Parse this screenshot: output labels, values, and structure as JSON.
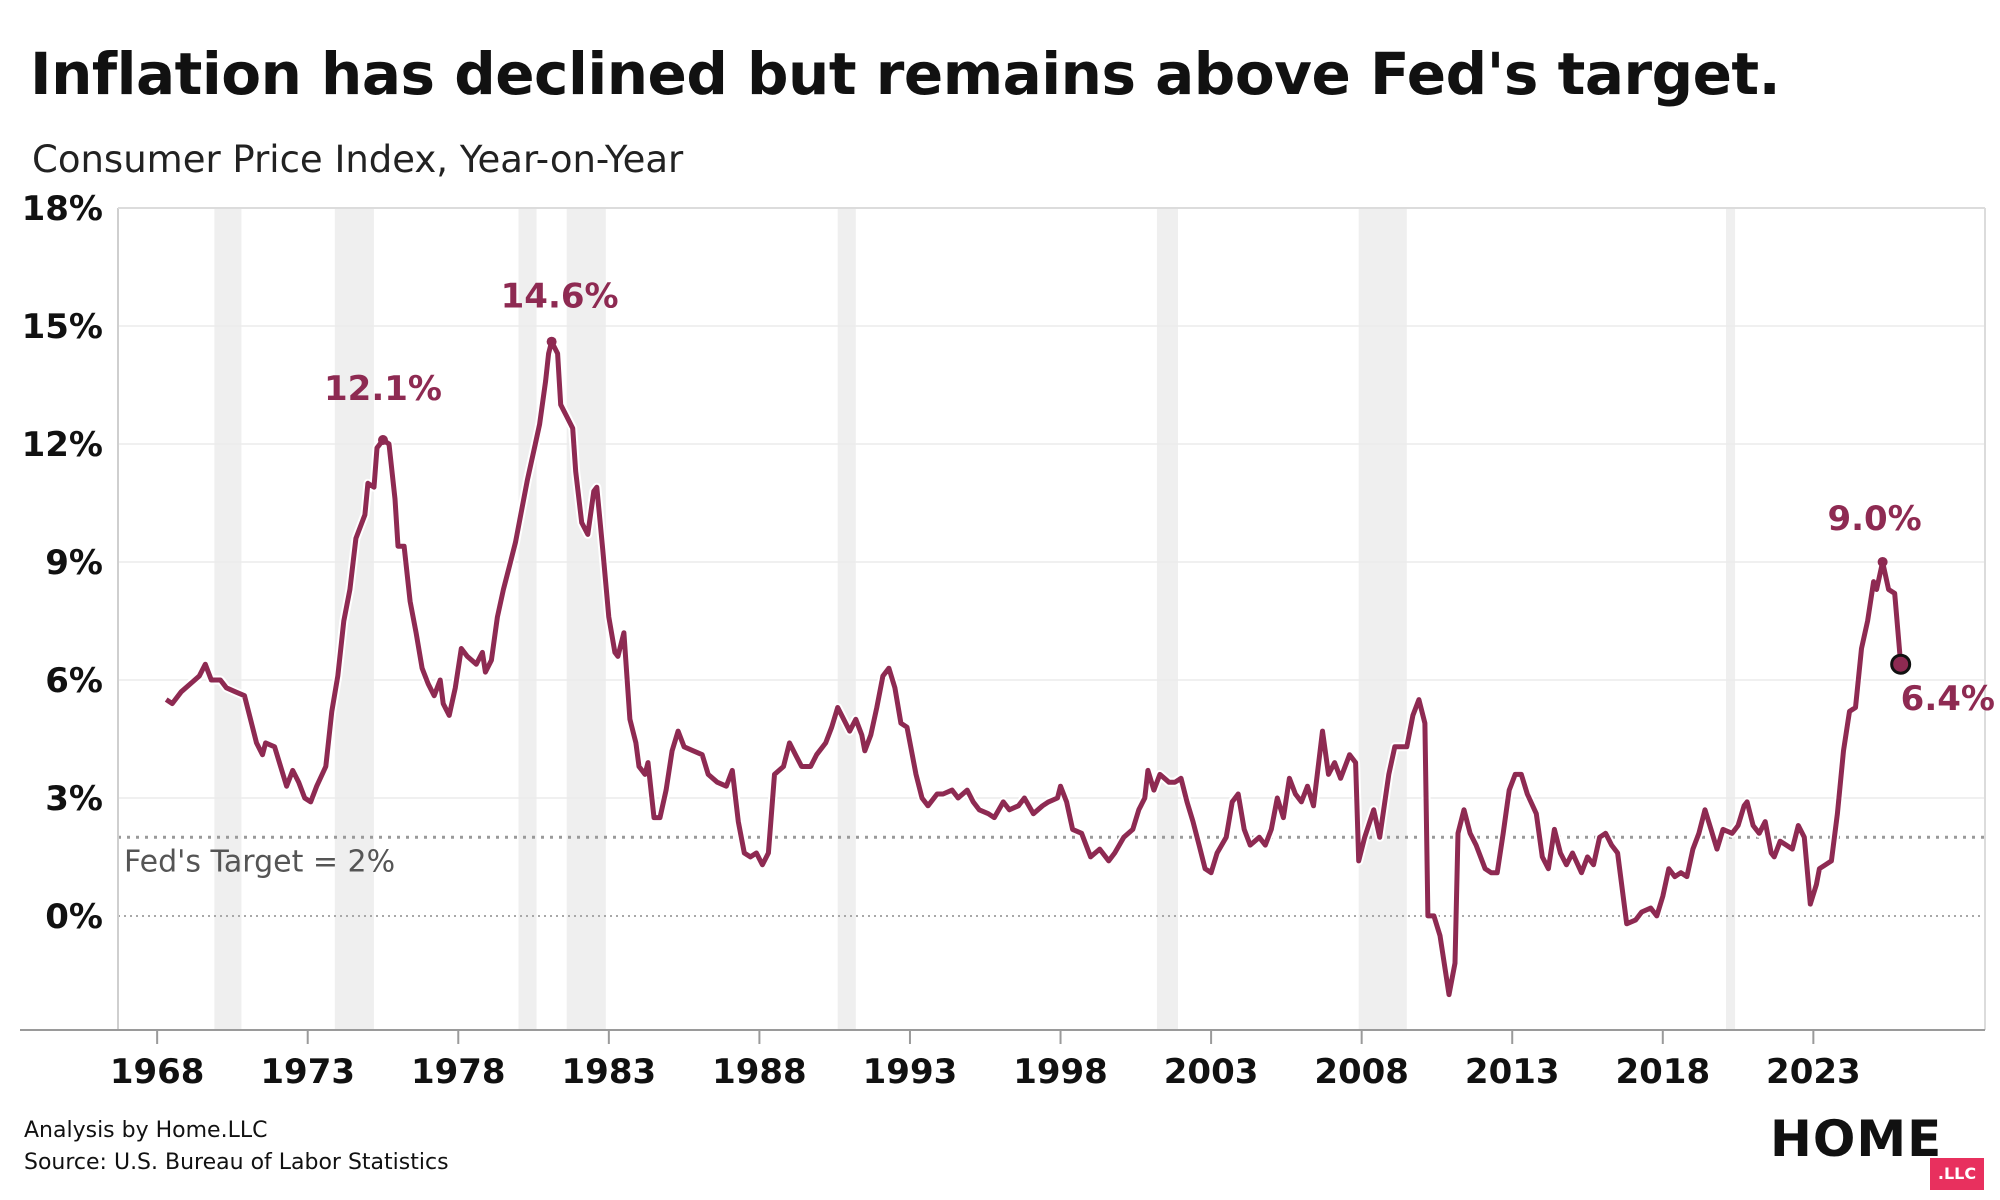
{
  "header": {
    "title": "Inflation has declined but remains above Fed's target.",
    "subtitle": "Consumer Price Index, Year-on-Year"
  },
  "footer": {
    "analysis": "Analysis by Home.LLC",
    "source": "Source: U.S. Bureau of Labor Statistics"
  },
  "logo": {
    "text": "HOME",
    "badge": ".LLC",
    "badge_color": "#e8305e"
  },
  "chart_data": {
    "type": "line",
    "title": "Inflation has declined but remains above Fed's target.",
    "subtitle": "Consumer Price Index, Year-on-Year",
    "xlabel": "",
    "ylabel": "",
    "xlim": [
      1966.7,
      2028.7
    ],
    "ylim": [
      -2.9,
      18
    ],
    "x_ticks": [
      1968,
      1973,
      1978,
      1983,
      1988,
      1993,
      1998,
      2003,
      2008,
      2013,
      2018,
      2023
    ],
    "x_tick_labels": [
      "1968",
      "1973",
      "1978",
      "1983",
      "1988",
      "1993",
      "1998",
      "2003",
      "2008",
      "2013",
      "2018",
      "2023"
    ],
    "y_ticks": [
      0,
      3,
      6,
      9,
      12,
      15,
      18
    ],
    "y_tick_labels": [
      "0%",
      "3%",
      "6%",
      "9%",
      "12%",
      "15%",
      "18%"
    ],
    "grid": "horizontal",
    "line_color": "#8e2a52",
    "recession_color": "#efefef",
    "recessions": [
      [
        1969.9,
        1970.8
      ],
      [
        1973.9,
        1975.2
      ],
      [
        1980.0,
        1980.6
      ],
      [
        1981.6,
        1982.9
      ],
      [
        1990.6,
        1991.2
      ],
      [
        2001.2,
        2001.9
      ],
      [
        2007.9,
        2009.5
      ],
      [
        2020.1,
        2020.4
      ]
    ],
    "reference_line": {
      "value": 2,
      "label": "Fed's Target = 2%"
    },
    "series": [
      {
        "name": "",
        "points": [
          [
            1968.3,
            5.5
          ],
          [
            1968.5,
            5.4
          ],
          [
            1968.8,
            5.7
          ],
          [
            1969.1,
            5.9
          ],
          [
            1969.4,
            6.1
          ],
          [
            1969.6,
            6.4
          ],
          [
            1969.8,
            6.0
          ],
          [
            1970.1,
            6.0
          ],
          [
            1970.3,
            5.8
          ],
          [
            1970.6,
            5.7
          ],
          [
            1970.9,
            5.6
          ],
          [
            1971.1,
            5.0
          ],
          [
            1971.3,
            4.4
          ],
          [
            1971.5,
            4.1
          ],
          [
            1971.6,
            4.4
          ],
          [
            1971.9,
            4.3
          ],
          [
            1972.1,
            3.8
          ],
          [
            1972.3,
            3.3
          ],
          [
            1972.5,
            3.7
          ],
          [
            1972.7,
            3.4
          ],
          [
            1972.9,
            3.0
          ],
          [
            1973.1,
            2.9
          ],
          [
            1973.3,
            3.3
          ],
          [
            1973.6,
            3.8
          ],
          [
            1973.8,
            5.2
          ],
          [
            1974.0,
            6.1
          ],
          [
            1974.2,
            7.5
          ],
          [
            1974.4,
            8.3
          ],
          [
            1974.6,
            9.6
          ],
          [
            1974.9,
            10.2
          ],
          [
            1975.0,
            11.0
          ],
          [
            1975.2,
            10.9
          ],
          [
            1975.3,
            11.9
          ],
          [
            1975.5,
            12.1
          ],
          [
            1975.7,
            12.0
          ],
          [
            1975.9,
            10.6
          ],
          [
            1976.0,
            9.4
          ],
          [
            1976.2,
            9.4
          ],
          [
            1976.4,
            8.0
          ],
          [
            1976.6,
            7.2
          ],
          [
            1976.8,
            6.3
          ],
          [
            1977.0,
            5.9
          ],
          [
            1977.2,
            5.6
          ],
          [
            1977.4,
            6.0
          ],
          [
            1977.5,
            5.4
          ],
          [
            1977.7,
            5.1
          ],
          [
            1977.9,
            5.8
          ],
          [
            1978.1,
            6.8
          ],
          [
            1978.3,
            6.6
          ],
          [
            1978.6,
            6.4
          ],
          [
            1978.8,
            6.7
          ],
          [
            1978.9,
            6.2
          ],
          [
            1979.1,
            6.5
          ],
          [
            1979.3,
            7.6
          ],
          [
            1979.5,
            8.3
          ],
          [
            1979.7,
            8.9
          ],
          [
            1979.9,
            9.5
          ],
          [
            1980.1,
            10.3
          ],
          [
            1980.3,
            11.1
          ],
          [
            1980.5,
            11.8
          ],
          [
            1980.7,
            12.5
          ],
          [
            1980.9,
            13.6
          ],
          [
            1981.0,
            14.3
          ],
          [
            1981.1,
            14.6
          ],
          [
            1981.3,
            14.3
          ],
          [
            1981.4,
            13.0
          ],
          [
            1981.6,
            12.7
          ],
          [
            1981.8,
            12.4
          ],
          [
            1981.9,
            11.3
          ],
          [
            1982.1,
            10.0
          ],
          [
            1982.3,
            9.7
          ],
          [
            1982.5,
            10.8
          ],
          [
            1982.6,
            10.9
          ],
          [
            1982.8,
            9.3
          ],
          [
            1983.0,
            7.6
          ],
          [
            1983.2,
            6.7
          ],
          [
            1983.3,
            6.6
          ],
          [
            1983.5,
            7.2
          ],
          [
            1983.7,
            5.0
          ],
          [
            1983.9,
            4.4
          ],
          [
            1984.0,
            3.8
          ],
          [
            1984.2,
            3.6
          ],
          [
            1984.3,
            3.9
          ],
          [
            1984.5,
            2.5
          ],
          [
            1984.7,
            2.5
          ],
          [
            1984.9,
            3.2
          ],
          [
            1985.1,
            4.2
          ],
          [
            1985.3,
            4.7
          ],
          [
            1985.5,
            4.3
          ],
          [
            1985.8,
            4.2
          ],
          [
            1986.1,
            4.1
          ],
          [
            1986.3,
            3.6
          ],
          [
            1986.6,
            3.4
          ],
          [
            1986.9,
            3.3
          ],
          [
            1987.1,
            3.7
          ],
          [
            1987.3,
            2.4
          ],
          [
            1987.5,
            1.6
          ],
          [
            1987.7,
            1.5
          ],
          [
            1987.9,
            1.6
          ],
          [
            1988.1,
            1.3
          ],
          [
            1988.3,
            1.6
          ],
          [
            1988.5,
            3.6
          ],
          [
            1988.8,
            3.8
          ],
          [
            1989.0,
            4.4
          ],
          [
            1989.2,
            4.1
          ],
          [
            1989.4,
            3.8
          ],
          [
            1989.7,
            3.8
          ],
          [
            1989.9,
            4.1
          ],
          [
            1990.2,
            4.4
          ],
          [
            1990.4,
            4.8
          ],
          [
            1990.6,
            5.3
          ],
          [
            1990.8,
            5.0
          ],
          [
            1991.0,
            4.7
          ],
          [
            1991.2,
            5.0
          ],
          [
            1991.4,
            4.6
          ],
          [
            1991.5,
            4.2
          ],
          [
            1991.7,
            4.6
          ],
          [
            1991.9,
            5.3
          ],
          [
            1992.1,
            6.1
          ],
          [
            1992.3,
            6.3
          ],
          [
            1992.5,
            5.8
          ],
          [
            1992.7,
            4.9
          ],
          [
            1992.9,
            4.8
          ],
          [
            1993.2,
            3.6
          ],
          [
            1993.4,
            3.0
          ],
          [
            1993.6,
            2.8
          ],
          [
            1993.9,
            3.1
          ],
          [
            1994.1,
            3.1
          ],
          [
            1994.4,
            3.2
          ],
          [
            1994.6,
            3.0
          ],
          [
            1994.9,
            3.2
          ],
          [
            1995.1,
            2.9
          ],
          [
            1995.3,
            2.7
          ],
          [
            1995.6,
            2.6
          ],
          [
            1995.8,
            2.5
          ],
          [
            1996.1,
            2.9
          ],
          [
            1996.3,
            2.7
          ],
          [
            1996.6,
            2.8
          ],
          [
            1996.8,
            3.0
          ],
          [
            1997.1,
            2.6
          ],
          [
            1997.4,
            2.8
          ],
          [
            1997.6,
            2.9
          ],
          [
            1997.9,
            3.0
          ],
          [
            1998.0,
            3.3
          ],
          [
            1998.2,
            2.9
          ],
          [
            1998.4,
            2.2
          ],
          [
            1998.7,
            2.1
          ],
          [
            1999.0,
            1.5
          ],
          [
            1999.3,
            1.7
          ],
          [
            1999.6,
            1.4
          ],
          [
            1999.8,
            1.6
          ],
          [
            2000.1,
            2.0
          ],
          [
            2000.4,
            2.2
          ],
          [
            2000.6,
            2.7
          ],
          [
            2000.8,
            3.0
          ],
          [
            2000.9,
            3.7
          ],
          [
            2001.1,
            3.2
          ],
          [
            2001.3,
            3.6
          ],
          [
            2001.6,
            3.4
          ],
          [
            2001.8,
            3.4
          ],
          [
            2002.0,
            3.5
          ],
          [
            2002.2,
            2.9
          ],
          [
            2002.4,
            2.4
          ],
          [
            2002.6,
            1.8
          ],
          [
            2002.8,
            1.2
          ],
          [
            2003.0,
            1.1
          ],
          [
            2003.2,
            1.6
          ],
          [
            2003.5,
            2.0
          ],
          [
            2003.7,
            2.9
          ],
          [
            2003.9,
            3.1
          ],
          [
            2004.1,
            2.2
          ],
          [
            2004.3,
            1.8
          ],
          [
            2004.6,
            2.0
          ],
          [
            2004.8,
            1.8
          ],
          [
            2005.0,
            2.2
          ],
          [
            2005.2,
            3.0
          ],
          [
            2005.4,
            2.5
          ],
          [
            2005.6,
            3.5
          ],
          [
            2005.8,
            3.1
          ],
          [
            2006.0,
            2.9
          ],
          [
            2006.2,
            3.3
          ],
          [
            2006.4,
            2.8
          ],
          [
            2006.7,
            4.7
          ],
          [
            2006.9,
            3.6
          ],
          [
            2007.1,
            3.9
          ],
          [
            2007.3,
            3.5
          ],
          [
            2007.6,
            4.1
          ],
          [
            2007.8,
            3.9
          ],
          [
            2007.9,
            1.4
          ],
          [
            2008.1,
            2.0
          ],
          [
            2008.4,
            2.7
          ],
          [
            2008.6,
            2.0
          ],
          [
            2008.9,
            3.6
          ],
          [
            2009.1,
            4.3
          ],
          [
            2009.3,
            4.3
          ],
          [
            2009.5,
            4.3
          ],
          [
            2009.7,
            5.1
          ],
          [
            2009.9,
            5.5
          ],
          [
            2010.1,
            4.9
          ],
          [
            2010.2,
            0.0
          ],
          [
            2010.4,
            0.0
          ],
          [
            2010.6,
            -0.5
          ],
          [
            2010.8,
            -1.5
          ],
          [
            2010.9,
            -2.0
          ],
          [
            2011.1,
            -1.2
          ],
          [
            2011.2,
            2.1
          ],
          [
            2011.4,
            2.7
          ],
          [
            2011.6,
            2.1
          ],
          [
            2011.8,
            1.8
          ],
          [
            2012.1,
            1.2
          ],
          [
            2012.3,
            1.1
          ],
          [
            2012.5,
            1.1
          ],
          [
            2012.7,
            2.1
          ],
          [
            2012.9,
            3.2
          ],
          [
            2013.1,
            3.6
          ],
          [
            2013.3,
            3.6
          ],
          [
            2013.5,
            3.1
          ],
          [
            2013.8,
            2.6
          ],
          [
            2014.0,
            1.5
          ],
          [
            2014.2,
            1.2
          ],
          [
            2014.4,
            2.2
          ],
          [
            2014.6,
            1.6
          ],
          [
            2014.8,
            1.3
          ],
          [
            2015.0,
            1.6
          ],
          [
            2015.3,
            1.1
          ],
          [
            2015.5,
            1.5
          ],
          [
            2015.7,
            1.3
          ],
          [
            2015.9,
            2.0
          ],
          [
            2016.1,
            2.1
          ],
          [
            2016.3,
            1.8
          ],
          [
            2016.5,
            1.6
          ],
          [
            2016.8,
            -0.2
          ],
          [
            2017.1,
            -0.1
          ],
          [
            2017.3,
            0.1
          ],
          [
            2017.6,
            0.2
          ],
          [
            2017.8,
            0.0
          ],
          [
            2018.0,
            0.5
          ],
          [
            2018.2,
            1.2
          ],
          [
            2018.4,
            1.0
          ],
          [
            2018.6,
            1.1
          ],
          [
            2018.8,
            1.0
          ],
          [
            2019.0,
            1.7
          ],
          [
            2019.2,
            2.1
          ],
          [
            2019.4,
            2.7
          ],
          [
            2019.6,
            2.2
          ],
          [
            2019.8,
            1.7
          ],
          [
            2020.0,
            2.2
          ],
          [
            2020.3,
            2.1
          ],
          [
            2020.5,
            2.3
          ],
          [
            2020.7,
            2.8
          ],
          [
            2020.8,
            2.9
          ],
          [
            2021.0,
            2.3
          ],
          [
            2021.2,
            2.1
          ],
          [
            2021.4,
            2.4
          ],
          [
            2021.6,
            1.6
          ],
          [
            2021.7,
            1.5
          ],
          [
            2021.9,
            1.9
          ],
          [
            2022.1,
            1.8
          ],
          [
            2022.3,
            1.7
          ],
          [
            2022.5,
            2.3
          ],
          [
            2022.7,
            2.0
          ],
          [
            2022.9,
            0.3
          ],
          [
            2023.1,
            0.8
          ],
          [
            2023.2,
            1.2
          ],
          [
            2023.4,
            1.3
          ],
          [
            2023.6,
            1.4
          ],
          [
            2023.8,
            2.6
          ],
          [
            2024.0,
            4.2
          ],
          [
            2024.2,
            5.2
          ],
          [
            2024.4,
            5.3
          ],
          [
            2024.6,
            6.8
          ],
          [
            2024.8,
            7.5
          ],
          [
            2025.0,
            8.5
          ],
          [
            2025.1,
            8.3
          ],
          [
            2025.3,
            9.0
          ],
          [
            2025.5,
            8.3
          ],
          [
            2025.7,
            8.2
          ],
          [
            2025.9,
            6.4
          ]
        ]
      }
    ],
    "annotations": [
      {
        "label": "12.1%",
        "x": 1975.5,
        "y": 12.1
      },
      {
        "label": "14.6%",
        "x": 1981.1,
        "y": 14.6
      },
      {
        "label": "9.0%",
        "x": 2025.3,
        "y": 9.0
      },
      {
        "label": "6.4%",
        "x": 2025.9,
        "y": 6.4,
        "marker": true
      }
    ]
  }
}
